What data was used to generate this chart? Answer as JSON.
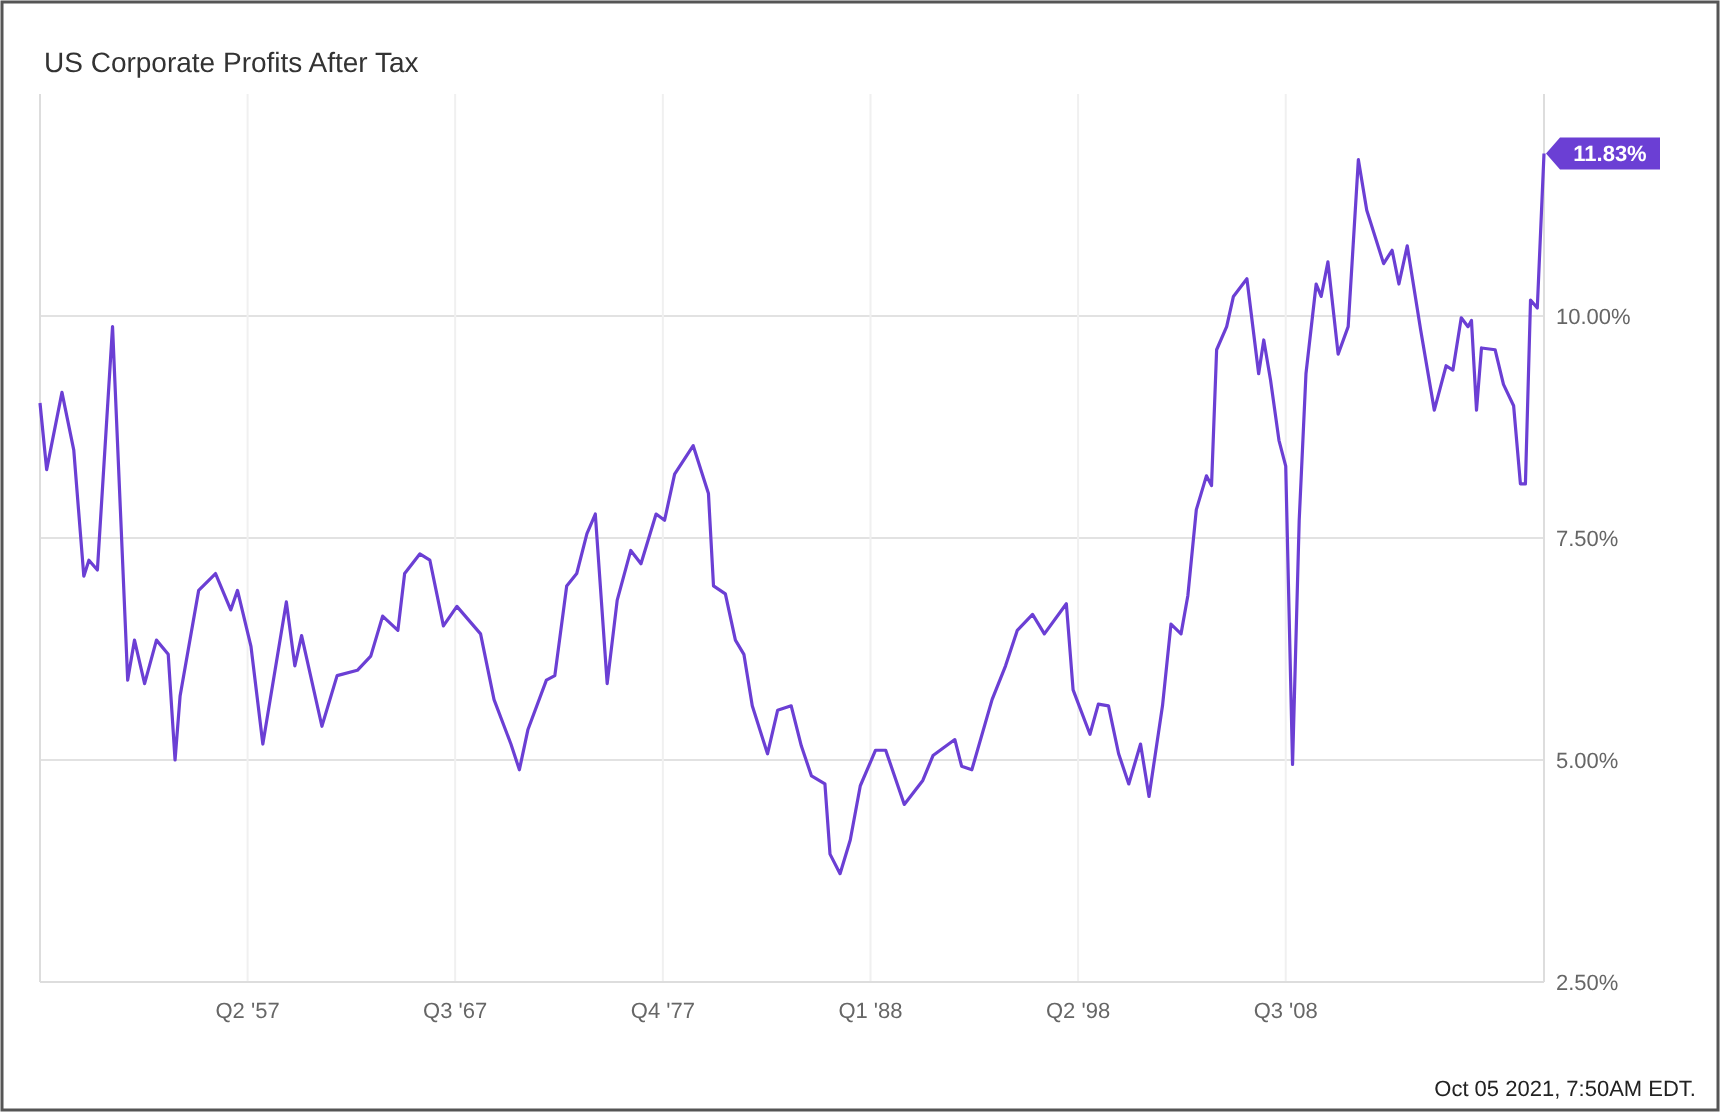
{
  "chart_data": {
    "type": "line",
    "title": "US Corporate Profits After Tax",
    "x": [
      "1947-01",
      "1947-05",
      "1948-02",
      "1948-09",
      "1949-03",
      "1949-06",
      "1949-11",
      "1950-08",
      "1951-05",
      "1951-09",
      "1952-03",
      "1952-10",
      "1953-05",
      "1953-09",
      "1953-12",
      "1954-11",
      "1955-09",
      "1956-06",
      "1956-10",
      "1957-06",
      "1958-01",
      "1959-03",
      "1959-08",
      "1959-12",
      "1960-12",
      "1961-09",
      "1962-09",
      "1963-05",
      "1963-12",
      "1964-09",
      "1965-01",
      "1965-10",
      "1966-04",
      "1966-12",
      "1967-08",
      "1968-10",
      "1969-06",
      "1970-04",
      "1970-09",
      "1971-02",
      "1972-01",
      "1972-06",
      "1973-01",
      "1973-07",
      "1974-01",
      "1974-06",
      "1975-01",
      "1975-07",
      "1976-03",
      "1976-09",
      "1977-06",
      "1977-11",
      "1978-05",
      "1979-04",
      "1980-01",
      "1980-04",
      "1980-11",
      "1981-05",
      "1981-10",
      "1982-03",
      "1982-12",
      "1983-06",
      "1984-02",
      "1984-08",
      "1985-02",
      "1985-10",
      "1986-01",
      "1986-07",
      "1987-01",
      "1987-07",
      "1988-04",
      "1988-10",
      "1989-09",
      "1990-08",
      "1991-02",
      "1992-03",
      "1992-07",
      "1993-01",
      "1994-01",
      "1994-09",
      "1995-04",
      "1996-01",
      "1996-08",
      "1997-09",
      "1998-01",
      "1998-11",
      "1999-04",
      "1999-10",
      "2000-04",
      "2000-10",
      "2001-05",
      "2001-10",
      "2002-06",
      "2002-11",
      "2003-05",
      "2003-09",
      "2004-02",
      "2004-08",
      "2004-11",
      "2005-02",
      "2005-08",
      "2005-12",
      "2006-08",
      "2007-03",
      "2007-06",
      "2007-10",
      "2008-03",
      "2008-07",
      "2008-11",
      "2009-03",
      "2009-07",
      "2010-01",
      "2010-04",
      "2010-08",
      "2011-02",
      "2011-08",
      "2012-02",
      "2012-07",
      "2013-05",
      "2013-10",
      "2014-02",
      "2014-07",
      "2015-03",
      "2015-11",
      "2016-06",
      "2016-10",
      "2017-03",
      "2017-07",
      "2017-09",
      "2017-12",
      "2018-03",
      "2018-11",
      "2019-04",
      "2019-10",
      "2020-02",
      "2020-05",
      "2020-08",
      "2020-12",
      "2021-04"
    ],
    "series": [
      {
        "color": "#6b3fd4",
        "values": [
          9.02,
          8.27,
          9.14,
          8.49,
          7.07,
          7.25,
          7.14,
          9.88,
          5.9,
          6.35,
          5.86,
          6.35,
          6.19,
          5.0,
          5.72,
          6.91,
          7.1,
          6.69,
          6.91,
          6.28,
          5.18,
          6.78,
          6.06,
          6.4,
          5.38,
          5.95,
          6.01,
          6.17,
          6.62,
          6.46,
          7.1,
          7.32,
          7.25,
          6.51,
          6.73,
          6.42,
          5.68,
          5.18,
          4.89,
          5.34,
          5.9,
          5.95,
          6.96,
          7.1,
          7.55,
          7.77,
          5.86,
          6.8,
          7.36,
          7.21,
          7.77,
          7.7,
          8.22,
          8.54,
          8.0,
          6.96,
          6.87,
          6.35,
          6.19,
          5.61,
          5.07,
          5.56,
          5.61,
          5.16,
          4.82,
          4.73,
          3.94,
          3.72,
          4.1,
          4.71,
          5.11,
          5.11,
          4.5,
          4.77,
          5.05,
          5.23,
          4.93,
          4.89,
          5.68,
          6.06,
          6.46,
          6.64,
          6.42,
          6.76,
          5.79,
          5.29,
          5.63,
          5.61,
          5.07,
          4.73,
          5.18,
          4.59,
          5.61,
          6.53,
          6.42,
          6.85,
          7.82,
          8.2,
          8.09,
          9.62,
          9.88,
          10.22,
          10.42,
          9.35,
          9.73,
          9.28,
          8.6,
          8.31,
          4.95,
          7.7,
          9.35,
          10.36,
          10.22,
          10.61,
          9.57,
          9.88,
          11.76,
          11.19,
          10.59,
          10.74,
          10.36,
          10.79,
          9.84,
          8.94,
          9.44,
          9.39,
          9.98,
          9.88,
          9.95,
          8.94,
          9.64,
          9.62,
          9.23,
          8.99,
          8.11,
          8.11,
          10.18,
          10.09,
          11.83
        ]
      }
    ],
    "xlim": [
      "1947-01",
      "2021-04"
    ],
    "xticks": [
      {
        "value": "1957-04",
        "label": "Q2 '57"
      },
      {
        "value": "1967-07",
        "label": "Q3 '67"
      },
      {
        "value": "1977-10",
        "label": "Q4 '77"
      },
      {
        "value": "1988-01",
        "label": "Q1 '88"
      },
      {
        "value": "1998-04",
        "label": "Q2 '98"
      },
      {
        "value": "2008-07",
        "label": "Q3 '08"
      }
    ],
    "ylim": [
      2.5,
      12.5
    ],
    "yticks": [
      {
        "value": 2.5,
        "label": "2.50%"
      },
      {
        "value": 5,
        "label": "5.00%"
      },
      {
        "value": 7.5,
        "label": "7.50%"
      },
      {
        "value": 10,
        "label": "10.00%"
      }
    ],
    "grid": true,
    "annotations": [
      {
        "text": "11.83%",
        "x": "2021-04",
        "y": 11.83
      },
      "Oct 05 2021, 7:50AM EDT."
    ]
  }
}
